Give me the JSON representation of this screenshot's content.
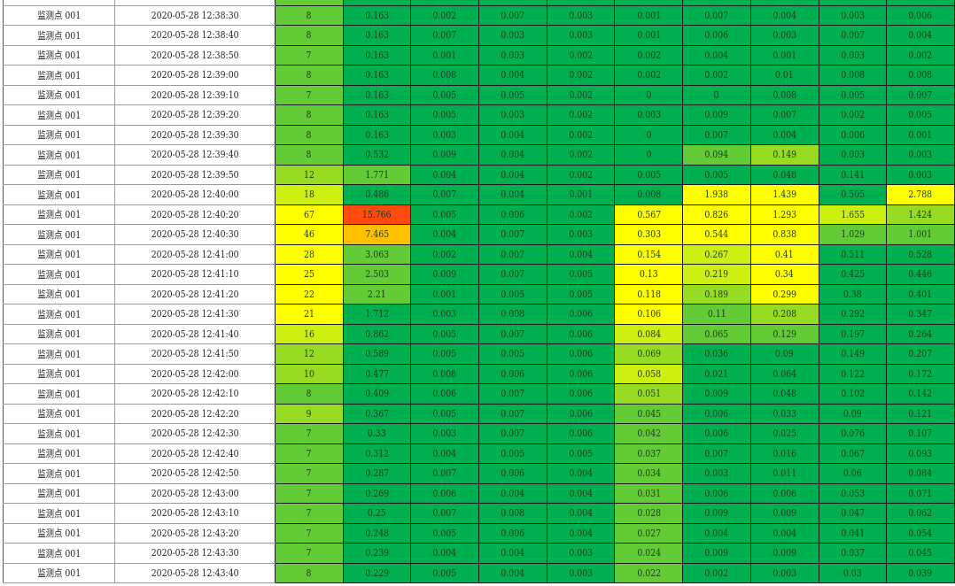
{
  "palette": {
    "G": "#00b050",
    "L": "#63cb35",
    "A": "#97dc22",
    "B": "#cdef12",
    "Y": "#ffff00",
    "O": "#ffc000",
    "R": "#ff4a10"
  },
  "rows": [
    {
      "name": "监测点 001",
      "time": "2020-05-28 12:38:30",
      "values": [
        "8",
        "0.163",
        "0.002",
        "0.007",
        "0.003",
        "0.001",
        "0.007",
        "0.004",
        "0.003",
        "0.006"
      ],
      "colors": "LGGGGGGGGG"
    },
    {
      "name": "监测点 001",
      "time": "2020-05-28 12:38:40",
      "values": [
        "8",
        "0.163",
        "0.007",
        "0.003",
        "0.003",
        "0.001",
        "0.006",
        "0.003",
        "0.007",
        "0.004"
      ],
      "colors": "LGGGGGGGGG"
    },
    {
      "name": "监测点 001",
      "time": "2020-05-28 12:38:50",
      "values": [
        "7",
        "0.163",
        "0.001",
        "0.003",
        "0.002",
        "0.002",
        "0.004",
        "0.001",
        "0.003",
        "0.002"
      ],
      "colors": "LGGGGGGGGG"
    },
    {
      "name": "监测点 001",
      "time": "2020-05-28 12:39:00",
      "values": [
        "8",
        "0.163",
        "0.008",
        "0.004",
        "0.002",
        "0.002",
        "0.002",
        "0.01",
        "0.008",
        "0.008"
      ],
      "colors": "LGGGGGGGGG"
    },
    {
      "name": "监测点 001",
      "time": "2020-05-28 12:39:10",
      "values": [
        "7",
        "0.163",
        "0.005",
        "0.005",
        "0.002",
        "0",
        "0",
        "0.008",
        "0.005",
        "0.007"
      ],
      "colors": "LGGGGGGGGG"
    },
    {
      "name": "监测点 001",
      "time": "2020-05-28 12:39:20",
      "values": [
        "8",
        "0.163",
        "0.005",
        "0.003",
        "0.002",
        "0.003",
        "0.009",
        "0.007",
        "0.002",
        "0.005"
      ],
      "colors": "LGGGGGGGGG"
    },
    {
      "name": "监测点 001",
      "time": "2020-05-28 12:39:30",
      "values": [
        "8",
        "0.163",
        "0.003",
        "0.004",
        "0.002",
        "0",
        "0.007",
        "0.004",
        "0.006",
        "0.001"
      ],
      "colors": "LGGGGGGGGG"
    },
    {
      "name": "监测点 001",
      "time": "2020-05-28 12:39:40",
      "values": [
        "8",
        "0.532",
        "0.009",
        "0.004",
        "0.002",
        "0",
        "0.094",
        "0.149",
        "0.003",
        "0.003"
      ],
      "colors": "LGGGGGLAGG"
    },
    {
      "name": "监测点 001",
      "time": "2020-05-28 12:39:50",
      "values": [
        "12",
        "1.771",
        "0.004",
        "0.004",
        "0.002",
        "0.005",
        "0.005",
        "0.048",
        "0.141",
        "0.003"
      ],
      "colors": "ALGGGGGGGG"
    },
    {
      "name": "监测点 001",
      "time": "2020-05-28 12:40:00",
      "values": [
        "18",
        "0.486",
        "0.007",
        "0.004",
        "0.001",
        "0.008",
        "1.938",
        "1.439",
        "0.505",
        "2.788"
      ],
      "colors": "BGGGGGYYGY"
    },
    {
      "name": "监测点 001",
      "time": "2020-05-28 12:40:20",
      "values": [
        "67",
        "15.766",
        "0.005",
        "0.006",
        "0.002",
        "0.567",
        "0.826",
        "1.293",
        "1.655",
        "1.424"
      ],
      "colors": "YRGGGYYYBA"
    },
    {
      "name": "监测点 001",
      "time": "2020-05-28 12:40:30",
      "values": [
        "46",
        "7.465",
        "0.004",
        "0.007",
        "0.003",
        "0.303",
        "0.544",
        "0.838",
        "1.029",
        "1.001"
      ],
      "colors": "YOGGGYYYLL"
    },
    {
      "name": "监测点 001",
      "time": "2020-05-28 12:41:00",
      "values": [
        "28",
        "3.063",
        "0.002",
        "0.007",
        "0.004",
        "0.154",
        "0.267",
        "0.41",
        "0.511",
        "0.528"
      ],
      "colors": "YLGGGYBYGG"
    },
    {
      "name": "监测点 001",
      "time": "2020-05-28 12:41:10",
      "values": [
        "25",
        "2.503",
        "0.009",
        "0.007",
        "0.005",
        "0.13",
        "0.219",
        "0.34",
        "0.425",
        "0.446"
      ],
      "colors": "YLGGGYBYGG"
    },
    {
      "name": "监测点 001",
      "time": "2020-05-28 12:41:20",
      "values": [
        "22",
        "2.21",
        "0.001",
        "0.005",
        "0.005",
        "0.118",
        "0.189",
        "0.299",
        "0.38",
        "0.401"
      ],
      "colors": "YLGGGYAYGG"
    },
    {
      "name": "监测点 001",
      "time": "2020-05-28 12:41:30",
      "values": [
        "21",
        "1.712",
        "0.003",
        "0.008",
        "0.006",
        "0.106",
        "0.11",
        "0.208",
        "0.292",
        "0.347"
      ],
      "colors": "YGGGGYLAGG"
    },
    {
      "name": "监测点 001",
      "time": "2020-05-28 12:41:40",
      "values": [
        "16",
        "0.862",
        "0.005",
        "0.007",
        "0.006",
        "0.084",
        "0.065",
        "0.129",
        "0.197",
        "0.264"
      ],
      "colors": "BGGGGBLLGG"
    },
    {
      "name": "监测点 001",
      "time": "2020-05-28 12:41:50",
      "values": [
        "12",
        "0.589",
        "0.005",
        "0.005",
        "0.006",
        "0.069",
        "0.036",
        "0.09",
        "0.149",
        "0.207"
      ],
      "colors": "AGGGGAGGGG"
    },
    {
      "name": "监测点 001",
      "time": "2020-05-28 12:42:00",
      "values": [
        "10",
        "0.477",
        "0.008",
        "0.006",
        "0.006",
        "0.058",
        "0.021",
        "0.064",
        "0.122",
        "0.172"
      ],
      "colors": "AGGGGBGGGG"
    },
    {
      "name": "监测点 001",
      "time": "2020-05-28 12:42:10",
      "values": [
        "8",
        "0.409",
        "0.006",
        "0.007",
        "0.006",
        "0.051",
        "0.009",
        "0.048",
        "0.102",
        "0.142"
      ],
      "colors": "LGGGGAGGGG"
    },
    {
      "name": "监测点 001",
      "time": "2020-05-28 12:42:20",
      "values": [
        "9",
        "0.367",
        "0.005",
        "0.007",
        "0.006",
        "0.045",
        "0.006",
        "0.033",
        "0.09",
        "0.121"
      ],
      "colors": "AGGGGLGGGG"
    },
    {
      "name": "监测点 001",
      "time": "2020-05-28 12:42:30",
      "values": [
        "7",
        "0.33",
        "0.003",
        "0.007",
        "0.006",
        "0.042",
        "0.006",
        "0.025",
        "0.076",
        "0.107"
      ],
      "colors": "LGGGGLGGGG"
    },
    {
      "name": "监测点 001",
      "time": "2020-05-28 12:42:40",
      "values": [
        "7",
        "0.312",
        "0.004",
        "0.005",
        "0.005",
        "0.037",
        "0.007",
        "0.016",
        "0.067",
        "0.093"
      ],
      "colors": "LGGGGLGGGG"
    },
    {
      "name": "监测点 001",
      "time": "2020-05-28 12:42:50",
      "values": [
        "7",
        "0.287",
        "0.007",
        "0.006",
        "0.004",
        "0.034",
        "0.003",
        "0.011",
        "0.06",
        "0.084"
      ],
      "colors": "LGGGGLGGGG"
    },
    {
      "name": "监测点 001",
      "time": "2020-05-28 12:43:00",
      "values": [
        "7",
        "0.269",
        "0.006",
        "0.004",
        "0.004",
        "0.031",
        "0.006",
        "0.006",
        "0.053",
        "0.071"
      ],
      "colors": "LGGGGLGGGG"
    },
    {
      "name": "监测点 001",
      "time": "2020-05-28 12:43:10",
      "values": [
        "7",
        "0.25",
        "0.007",
        "0.008",
        "0.004",
        "0.028",
        "0.009",
        "0.009",
        "0.047",
        "0.062"
      ],
      "colors": "LGGGGLGGGG"
    },
    {
      "name": "监测点 001",
      "time": "2020-05-28 12:43:20",
      "values": [
        "7",
        "0.248",
        "0.005",
        "0.006",
        "0.004",
        "0.027",
        "0.004",
        "0.004",
        "0.041",
        "0.054"
      ],
      "colors": "LGGGGLGGGG"
    },
    {
      "name": "监测点 001",
      "time": "2020-05-28 12:43:30",
      "values": [
        "7",
        "0.239",
        "0.004",
        "0.004",
        "0.003",
        "0.024",
        "0.009",
        "0.009",
        "0.037",
        "0.045"
      ],
      "colors": "LGGGGLGGGG"
    },
    {
      "name": "监测点 001",
      "time": "2020-05-28 12:43:40",
      "values": [
        "8",
        "0.229",
        "0.005",
        "0.004",
        "0.003",
        "0.022",
        "0.002",
        "0.003",
        "0.03",
        "0.039"
      ],
      "colors": "LGGGGLGGGG"
    }
  ]
}
